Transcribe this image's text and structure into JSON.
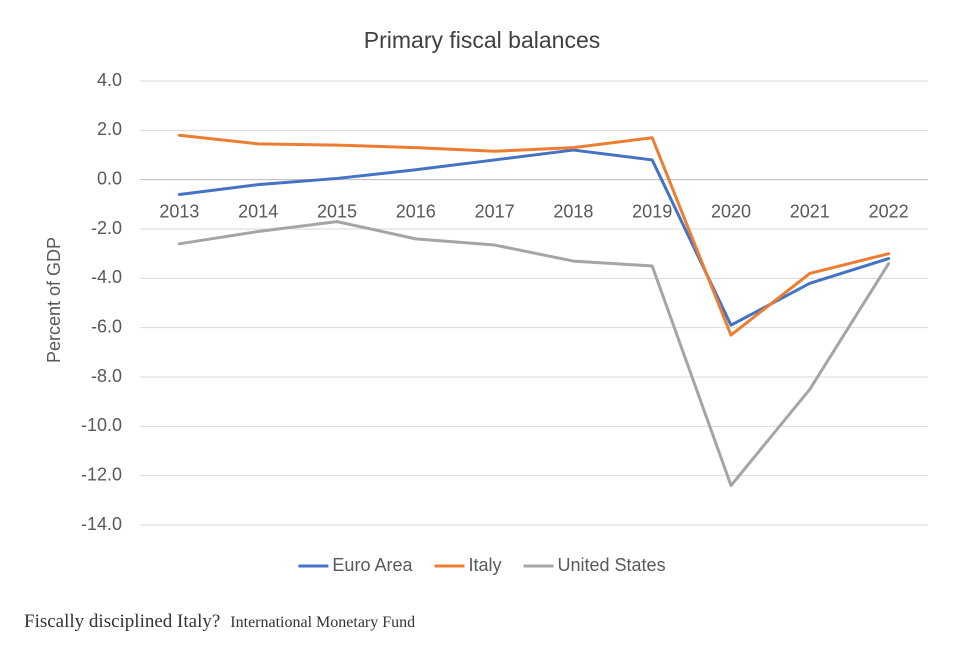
{
  "chart_data": {
    "type": "line",
    "title": "Primary fiscal balances",
    "y_label": "Percent of GDP",
    "categories": [
      "2013",
      "2014",
      "2015",
      "2016",
      "2017",
      "2018",
      "2019",
      "2020",
      "2021",
      "2022"
    ],
    "series": [
      {
        "name": "Euro Area",
        "color": "#4472c4",
        "values": [
          -0.6,
          -0.2,
          0.05,
          0.4,
          0.8,
          1.2,
          0.8,
          -5.9,
          -4.2,
          -3.2
        ]
      },
      {
        "name": "Italy",
        "color": "#ed7d31",
        "values": [
          1.8,
          1.45,
          1.4,
          1.3,
          1.15,
          1.3,
          1.7,
          -6.3,
          -3.8,
          -3.0
        ]
      },
      {
        "name": "United States",
        "color": "#a5a5a5",
        "values": [
          -2.6,
          -2.1,
          -1.7,
          -2.4,
          -2.65,
          -3.3,
          -3.5,
          -12.4,
          -8.5,
          -3.4
        ]
      }
    ],
    "ylim": [
      -14,
      4
    ],
    "yticks": [
      {
        "value": -14,
        "label": "-14.0"
      },
      {
        "value": -12,
        "label": "-12.0"
      },
      {
        "value": -10,
        "label": "-10.0"
      },
      {
        "value": -8,
        "label": "-8.0"
      },
      {
        "value": -6,
        "label": "-6.0"
      },
      {
        "value": -4,
        "label": "-4.0"
      },
      {
        "value": -2,
        "label": "-2.0"
      },
      {
        "value": 0,
        "label": "0.0"
      },
      {
        "value": 2,
        "label": "2.0"
      },
      {
        "value": 4,
        "label": "4.0"
      }
    ],
    "grid": true,
    "legend": "bottom"
  },
  "caption": {
    "text": "Fiscally disciplined Italy?",
    "credit": "International Monetary Fund"
  }
}
